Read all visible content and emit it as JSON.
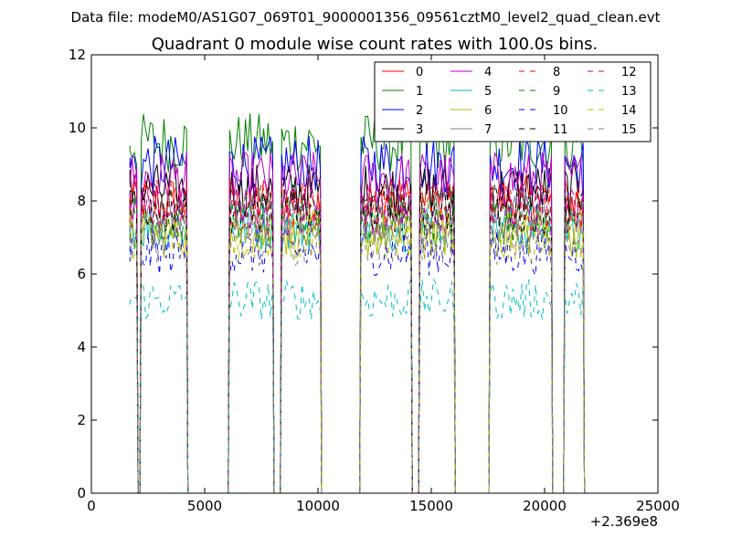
{
  "figure": {
    "suptitle": "Data file: modeM0/AS1G07_069T01_9000001356_09561cztM0_level2_quad_clean.evt"
  },
  "chart_data": {
    "type": "line",
    "title": "Quadrant 0 module wise count rates with 100.0s bins.",
    "xlabel": "",
    "ylabel": "",
    "xlim": [
      0,
      25000
    ],
    "ylim": [
      0,
      12
    ],
    "x_offset_label": "+2.369e8",
    "x_ticks": [
      0,
      5000,
      10000,
      15000,
      20000,
      25000
    ],
    "y_ticks": [
      0,
      2,
      4,
      6,
      8,
      10,
      12
    ],
    "grid": false,
    "legend_position": "top-right",
    "legend_columns": 4,
    "x_segments": [
      [
        1700,
        2000
      ],
      [
        2200,
        4200
      ],
      [
        6100,
        8000
      ],
      [
        8400,
        10100
      ],
      [
        11900,
        14100
      ],
      [
        14500,
        16000
      ],
      [
        17600,
        20300
      ],
      [
        20900,
        21700
      ]
    ],
    "series": [
      {
        "name": "0",
        "color": "#ff0000",
        "dash": "solid",
        "level": 8.0
      },
      {
        "name": "1",
        "color": "#008000",
        "dash": "solid",
        "level": 9.6
      },
      {
        "name": "2",
        "color": "#0000ff",
        "dash": "solid",
        "level": 9.0
      },
      {
        "name": "3",
        "color": "#000000",
        "dash": "solid",
        "level": 8.3
      },
      {
        "name": "4",
        "color": "#bf00bf",
        "dash": "solid",
        "level": 8.6
      },
      {
        "name": "5",
        "color": "#00bfbf",
        "dash": "solid",
        "level": 7.3
      },
      {
        "name": "6",
        "color": "#bfbf00",
        "dash": "solid",
        "level": 7.1
      },
      {
        "name": "7",
        "color": "#808080",
        "dash": "solid",
        "level": 7.6
      },
      {
        "name": "8",
        "color": "#ff0000",
        "dash": "dashed",
        "level": 7.9
      },
      {
        "name": "9",
        "color": "#008000",
        "dash": "dashed",
        "level": 7.5
      },
      {
        "name": "10",
        "color": "#0000ff",
        "dash": "dashed",
        "level": 6.6
      },
      {
        "name": "11",
        "color": "#000000",
        "dash": "dashed",
        "level": 7.8
      },
      {
        "name": "12",
        "color": "#bf00bf",
        "dash": "dashed",
        "level": 7.7
      },
      {
        "name": "13",
        "color": "#00bfbf",
        "dash": "dashed",
        "level": 5.3
      },
      {
        "name": "14",
        "color": "#bfbf00",
        "dash": "dashed",
        "level": 7.0
      },
      {
        "name": "15",
        "color": "#808080",
        "dash": "dashed",
        "level": 6.9
      }
    ]
  }
}
